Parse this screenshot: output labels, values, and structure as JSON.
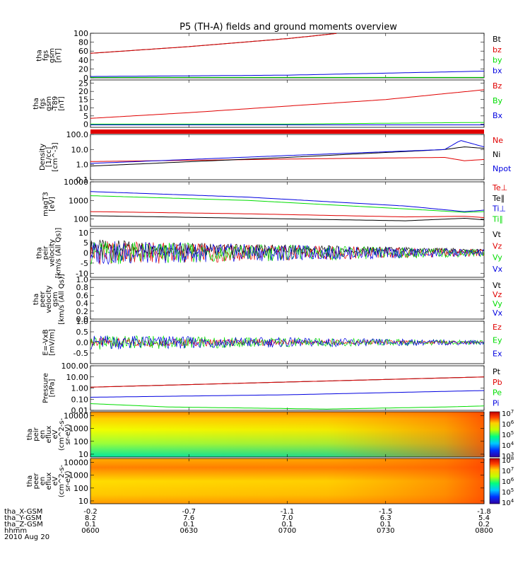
{
  "title": "P5 (TH-A) fields and ground moments overview",
  "footer": {
    "row_labels": [
      "tha_X-GSM",
      "tha_Y-GSM",
      "tha_Z-GSM",
      "hhmm",
      "2010 Aug 20"
    ],
    "columns": [
      {
        "x": "-0.2",
        "y": "8.2",
        "z": "0.1",
        "t": "0600"
      },
      {
        "x": "-0.7",
        "y": "7.6",
        "z": "0.1",
        "t": "0630"
      },
      {
        "x": "-1.1",
        "y": "7.0",
        "z": "0.1",
        "t": "0700"
      },
      {
        "x": "-1.5",
        "y": "6.3",
        "z": "0.1",
        "t": "0730"
      },
      {
        "x": "-1.8",
        "y": "5.4",
        "z": "0.2",
        "t": "0800"
      }
    ]
  },
  "colors": {
    "black": "#000000",
    "red": "#e00000",
    "green": "#00dd00",
    "blue": "#0000e0"
  },
  "chart_data": [
    {
      "id": "fgs",
      "type": "line",
      "ylabel": [
        "tha",
        "fgs",
        "gsm",
        "[nT]"
      ],
      "yticks": [
        "0",
        "20",
        "40",
        "60",
        "80",
        "100"
      ],
      "ylim": [
        0,
        100
      ],
      "legend": [
        {
          "name": "Bt",
          "color": "#000000"
        },
        {
          "name": "bz",
          "color": "#e00000"
        },
        {
          "name": "by",
          "color": "#00dd00"
        },
        {
          "name": "bx",
          "color": "#0000e0"
        }
      ],
      "series": [
        {
          "name": "Bt",
          "color": "#000000",
          "x": [
            0,
            0.25,
            0.5,
            0.63
          ],
          "y": [
            55,
            70,
            88,
            100
          ]
        },
        {
          "name": "bz",
          "color": "#e00000",
          "x": [
            0,
            0.25,
            0.5,
            0.63
          ],
          "y": [
            55,
            70,
            88,
            100
          ]
        },
        {
          "name": "by",
          "color": "#00dd00",
          "x": [
            0,
            1
          ],
          "y": [
            1,
            1
          ]
        },
        {
          "name": "bx",
          "color": "#0000e0",
          "x": [
            0,
            0.5,
            1
          ],
          "y": [
            3,
            6,
            15
          ]
        }
      ]
    },
    {
      "id": "fgs_t89",
      "type": "line",
      "ylabel": [
        "tha",
        "fgs",
        "gsm",
        "-T89",
        "[nT]"
      ],
      "yticks": [
        "0",
        "5",
        "10",
        "15",
        "20",
        "25"
      ],
      "ylim": [
        -2,
        27
      ],
      "legend": [
        {
          "name": "Bz",
          "color": "#e00000"
        },
        {
          "name": "By",
          "color": "#00dd00"
        },
        {
          "name": "Bx",
          "color": "#0000e0"
        }
      ],
      "series": [
        {
          "name": "Bz",
          "color": "#e00000",
          "x": [
            0,
            0.25,
            0.5,
            0.75,
            1
          ],
          "y": [
            3.5,
            7,
            11,
            15,
            21
          ]
        },
        {
          "name": "By",
          "color": "#00dd00",
          "x": [
            0,
            0.5,
            1
          ],
          "y": [
            0,
            0,
            1
          ]
        },
        {
          "name": "Bx",
          "color": "#0000e0",
          "x": [
            0,
            1
          ],
          "y": [
            -0.5,
            -0.5
          ]
        }
      ]
    },
    {
      "id": "density",
      "type": "line",
      "scale": "log",
      "ylabel": [
        "Density",
        "[1/cc]",
        "[cm^-3]"
      ],
      "yticks": [
        "0.1",
        "1.0",
        "10.0",
        "100.0"
      ],
      "ylim": [
        0.1,
        100
      ],
      "legend": [
        {
          "name": "Ne",
          "color": "#e00000"
        },
        {
          "name": "Ni",
          "color": "#000000"
        },
        {
          "name": "Npot",
          "color": "#0000e0"
        }
      ],
      "series": [
        {
          "name": "Ne",
          "color": "#e00000",
          "x": [
            0,
            0.3,
            0.6,
            0.9,
            0.95,
            1
          ],
          "y": [
            1.6,
            2,
            2.5,
            3,
            1.8,
            2.2
          ]
        },
        {
          "name": "Ni",
          "color": "#000000",
          "x": [
            0,
            0.5,
            0.9,
            0.95,
            1
          ],
          "y": [
            0.8,
            3,
            10,
            15,
            12
          ]
        },
        {
          "name": "Npot",
          "color": "#0000e0",
          "x": [
            0,
            0.5,
            0.9,
            0.94,
            1
          ],
          "y": [
            1.2,
            4,
            10,
            40,
            15
          ]
        }
      ]
    },
    {
      "id": "temperature",
      "type": "line",
      "scale": "log",
      "ylabel": [
        "magT3",
        "[eV]"
      ],
      "yticks": [
        "100",
        "1000",
        "10000"
      ],
      "ylim": [
        40,
        10000
      ],
      "legend": [
        {
          "name": "Te⊥",
          "color": "#e00000"
        },
        {
          "name": "Te∥",
          "color": "#000000"
        },
        {
          "name": "Ti⊥",
          "color": "#0000e0"
        },
        {
          "name": "Ti∥",
          "color": "#00dd00"
        }
      ],
      "series": [
        {
          "name": "Te⊥",
          "color": "#e00000",
          "x": [
            0,
            0.4,
            0.8,
            0.95,
            1
          ],
          "y": [
            250,
            190,
            130,
            140,
            120
          ]
        },
        {
          "name": "Te∥",
          "color": "#000000",
          "x": [
            0,
            0.4,
            0.8,
            0.95,
            1
          ],
          "y": [
            150,
            110,
            80,
            110,
            90
          ]
        },
        {
          "name": "Ti⊥",
          "color": "#0000e0",
          "x": [
            0,
            0.4,
            0.8,
            0.95,
            1
          ],
          "y": [
            3000,
            1500,
            500,
            250,
            300
          ]
        },
        {
          "name": "Ti∥",
          "color": "#00dd00",
          "x": [
            0,
            0.4,
            0.8,
            0.95,
            1
          ],
          "y": [
            1800,
            1000,
            350,
            230,
            250
          ]
        }
      ]
    },
    {
      "id": "peir_velocity",
      "type": "line",
      "ylabel": [
        "tha",
        "peir",
        "velocity",
        "[km/s (All Qs)]"
      ],
      "yticks": [
        "-10",
        "-5",
        "0",
        "5",
        "10"
      ],
      "ylim": [
        -12,
        12
      ],
      "legend": [
        {
          "name": "Vt",
          "color": "#000000"
        },
        {
          "name": "Vz",
          "color": "#e00000"
        },
        {
          "name": "Vy",
          "color": "#00dd00"
        },
        {
          "name": "Vx",
          "color": "#0000e0"
        }
      ],
      "series": [
        {
          "name": "Vt",
          "color": "#000000",
          "x": [
            0,
            0.3,
            1
          ],
          "y": [
            3,
            2,
            1
          ]
        },
        {
          "name": "Vz",
          "color": "#e00000",
          "x": [
            0,
            1
          ],
          "y": [
            0,
            0
          ]
        },
        {
          "name": "Vy",
          "color": "#00dd00",
          "x": [
            0,
            1
          ],
          "y": [
            0,
            0
          ]
        },
        {
          "name": "Vx",
          "color": "#0000e0",
          "x": [
            0,
            1
          ],
          "y": [
            0,
            0
          ]
        }
      ]
    },
    {
      "id": "peer_velocity",
      "type": "line",
      "ylabel": [
        "tha",
        "peer",
        "velocity",
        "gsm",
        "[km/s (All Qs)]"
      ],
      "yticks": [
        "0.0",
        "0.2",
        "0.4",
        "0.6",
        "0.8",
        "1.0"
      ],
      "ylim": [
        0,
        1
      ],
      "legend": [
        {
          "name": "Vt",
          "color": "#000000"
        },
        {
          "name": "Vz",
          "color": "#e00000"
        },
        {
          "name": "Vy",
          "color": "#00dd00"
        },
        {
          "name": "Vx",
          "color": "#0000e0"
        }
      ],
      "series": []
    },
    {
      "id": "efield",
      "type": "line",
      "ylabel": [
        "E=-VxB",
        "[mV/m]"
      ],
      "yticks": [
        "-0.5",
        "0.0",
        "0.5",
        "1.0"
      ],
      "ylim": [
        -1,
        1
      ],
      "legend": [
        {
          "name": "Ez",
          "color": "#e00000"
        },
        {
          "name": "Ey",
          "color": "#00dd00"
        },
        {
          "name": "Ex",
          "color": "#0000e0"
        }
      ],
      "series": [
        {
          "name": "Ez",
          "color": "#e00000",
          "x": [
            0,
            1
          ],
          "y": [
            0,
            0
          ]
        },
        {
          "name": "Ey",
          "color": "#00dd00",
          "x": [
            0,
            1
          ],
          "y": [
            0,
            0
          ]
        },
        {
          "name": "Ex",
          "color": "#0000e0",
          "x": [
            0,
            1
          ],
          "y": [
            0,
            0
          ]
        }
      ]
    },
    {
      "id": "pressure",
      "type": "line",
      "scale": "log",
      "ylabel": [
        "Pressure",
        "[nPa]"
      ],
      "yticks": [
        "0.01",
        "0.10",
        "1.00",
        "10.00",
        "100.00"
      ],
      "ylim": [
        0.01,
        100
      ],
      "legend": [
        {
          "name": "Pt",
          "color": "#000000"
        },
        {
          "name": "Pb",
          "color": "#e00000"
        },
        {
          "name": "Pe",
          "color": "#00dd00"
        },
        {
          "name": "Pi",
          "color": "#0000e0"
        }
      ],
      "series": [
        {
          "name": "Pt",
          "color": "#000000",
          "x": [
            0,
            0.5,
            1
          ],
          "y": [
            1.2,
            3.5,
            10
          ]
        },
        {
          "name": "Pb",
          "color": "#e00000",
          "x": [
            0,
            0.5,
            1
          ],
          "y": [
            1.2,
            3.5,
            10
          ]
        },
        {
          "name": "Pe",
          "color": "#00dd00",
          "x": [
            0,
            0.2,
            0.6,
            0.9,
            1
          ],
          "y": [
            0.04,
            0.02,
            0.013,
            0.02,
            0.025
          ]
        },
        {
          "name": "Pi",
          "color": "#0000e0",
          "x": [
            0,
            0.5,
            1
          ],
          "y": [
            0.15,
            0.25,
            0.6
          ]
        }
      ]
    },
    {
      "id": "peir_eflux",
      "type": "heatmap",
      "scale": "log",
      "ylabel": [
        "tha",
        "peir",
        "en",
        "eflux",
        "eV",
        "(cm^2-s-",
        "sr-eV)"
      ],
      "yticks": [
        "10",
        "100",
        "1000",
        "10000"
      ],
      "ylim": [
        6,
        20000
      ],
      "colorbar_ticks": [
        "10^3",
        "10^4",
        "10^5",
        "10^6",
        "10^7"
      ]
    },
    {
      "id": "peer_eflux",
      "type": "heatmap",
      "scale": "log",
      "ylabel": [
        "tha",
        "peer",
        "en",
        "eflux",
        "eV",
        "(cm^2-s-",
        "sr-eV)"
      ],
      "yticks": [
        "10",
        "100",
        "1000",
        "10000"
      ],
      "ylim": [
        6,
        20000
      ],
      "colorbar_ticks": [
        "10^4",
        "10^5",
        "10^6",
        "10^7",
        "10^8"
      ]
    }
  ]
}
